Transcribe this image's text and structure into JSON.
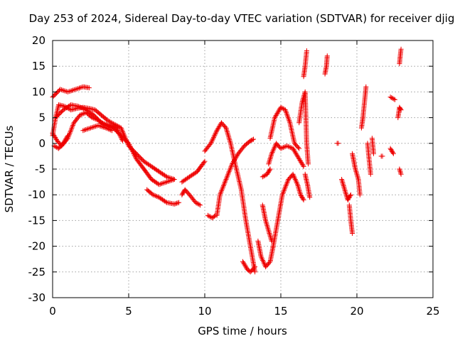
{
  "chart_data": {
    "type": "scatter",
    "title": "Day 253 of 2024, Sidereal Day-to-day VTEC variation (SDTVAR) for receiver djig",
    "xlabel": "GPS time / hours",
    "ylabel": "SDTVAR / TECUs",
    "xlim": [
      0,
      25
    ],
    "ylim": [
      -30,
      20
    ],
    "x_ticks": [
      0,
      5,
      10,
      15,
      20,
      25
    ],
    "x_tick_labels": [
      "0",
      "5",
      "10",
      "15",
      "20",
      "25"
    ],
    "y_ticks": [
      20,
      15,
      10,
      5,
      0,
      -5,
      -10,
      -15,
      -20,
      -25,
      -30
    ],
    "y_tick_labels": [
      "20",
      "15",
      "10",
      "5",
      "0",
      "-5",
      "-10",
      "-15",
      "-20",
      "-25",
      "-30"
    ],
    "grid": true,
    "marker": "+",
    "color": "#ee0000",
    "series": [
      {
        "segments": [
          [
            [
              0,
              1.5
            ],
            [
              0.2,
              5
            ],
            [
              0.4,
              7.5
            ],
            [
              0.8,
              7.2
            ],
            [
              1.2,
              6.5
            ],
            [
              1.6,
              6.8
            ],
            [
              2,
              7
            ],
            [
              2.4,
              6.8
            ],
            [
              2.8,
              6.5
            ],
            [
              3.2,
              5.5
            ],
            [
              3.6,
              4.5
            ],
            [
              4,
              3.8
            ],
            [
              4.5,
              3
            ],
            [
              5,
              -0.5
            ],
            [
              5.5,
              -2
            ],
            [
              6,
              -3.5
            ],
            [
              6.5,
              -4.5
            ],
            [
              7,
              -5.5
            ],
            [
              7.5,
              -6.5
            ],
            [
              8,
              -7
            ]
          ],
          [
            [
              0,
              2
            ],
            [
              0.3,
              0.5
            ],
            [
              0.6,
              -0.5
            ],
            [
              1,
              1
            ],
            [
              1.4,
              4
            ],
            [
              1.8,
              5.5
            ],
            [
              2.2,
              6
            ],
            [
              2.6,
              5
            ],
            [
              3,
              4.5
            ],
            [
              3.5,
              3.5
            ],
            [
              4,
              3
            ],
            [
              4.5,
              1.5
            ],
            [
              5,
              0
            ],
            [
              5.5,
              -3
            ],
            [
              6,
              -5
            ],
            [
              6.5,
              -7
            ],
            [
              7,
              -8
            ],
            [
              7.5,
              -7.5
            ],
            [
              8,
              -7
            ]
          ],
          [
            [
              0,
              9
            ],
            [
              0.5,
              10.5
            ],
            [
              1,
              10
            ],
            [
              1.5,
              10.5
            ],
            [
              2,
              11
            ],
            [
              2.4,
              10.8
            ]
          ],
          [
            [
              0.2,
              5
            ],
            [
              0.7,
              6.5
            ],
            [
              1.2,
              7.5
            ],
            [
              1.7,
              7.2
            ],
            [
              2.2,
              6.5
            ],
            [
              2.7,
              5.5
            ],
            [
              3.2,
              4
            ],
            [
              3.7,
              3.5
            ],
            [
              4.2,
              3
            ],
            [
              4.6,
              0.5
            ]
          ],
          [
            [
              0.1,
              -0.5
            ],
            [
              0.4,
              -1
            ],
            [
              0.7,
              0
            ],
            [
              1,
              1.5
            ]
          ],
          [
            [
              2,
              2.5
            ],
            [
              2.5,
              3
            ],
            [
              3,
              3.5
            ],
            [
              3.5,
              3
            ],
            [
              3.9,
              2.5
            ]
          ],
          [
            [
              6.2,
              -9
            ],
            [
              6.6,
              -10
            ],
            [
              7,
              -10.5
            ],
            [
              7.5,
              -11.5
            ],
            [
              8,
              -11.8
            ],
            [
              8.3,
              -11.5
            ]
          ],
          [
            [
              8.5,
              -10
            ],
            [
              8.7,
              -9
            ],
            [
              9,
              -10
            ],
            [
              9.4,
              -11.5
            ],
            [
              9.7,
              -12
            ]
          ],
          [
            [
              8.5,
              -7.5
            ],
            [
              9,
              -6.5
            ],
            [
              9.5,
              -5.5
            ],
            [
              10,
              -3.5
            ]
          ],
          [
            [
              10.2,
              -14
            ],
            [
              10.5,
              -14.5
            ],
            [
              10.7,
              -14
            ]
          ],
          [
            [
              10,
              -1.5
            ],
            [
              10.4,
              0
            ],
            [
              10.8,
              2.5
            ],
            [
              11.1,
              4
            ],
            [
              11.4,
              3
            ],
            [
              11.7,
              0
            ],
            [
              12,
              -4
            ],
            [
              12.4,
              -9
            ],
            [
              12.7,
              -15
            ],
            [
              13,
              -20
            ],
            [
              13.3,
              -25
            ]
          ],
          [
            [
              10.8,
              -14
            ],
            [
              11,
              -10
            ],
            [
              11.4,
              -7
            ],
            [
              11.8,
              -4
            ],
            [
              12.2,
              -2
            ],
            [
              12.6,
              -0.5
            ],
            [
              13,
              0.5
            ],
            [
              13.2,
              0.8
            ]
          ],
          [
            [
              12.5,
              -23
            ],
            [
              12.8,
              -24.5
            ],
            [
              13,
              -25
            ],
            [
              13.3,
              -24
            ]
          ],
          [
            [
              13.5,
              -19
            ],
            [
              13.7,
              -22
            ],
            [
              14,
              -24
            ],
            [
              14.3,
              -23
            ],
            [
              14.5,
              -20
            ]
          ],
          [
            [
              13.8,
              -12
            ],
            [
              14,
              -15
            ],
            [
              14.2,
              -17
            ],
            [
              14.4,
              -19
            ]
          ],
          [
            [
              13.8,
              -6.5
            ],
            [
              14.1,
              -6
            ],
            [
              14.3,
              -5
            ]
          ],
          [
            [
              14.2,
              -4
            ],
            [
              14.4,
              -2
            ],
            [
              14.7,
              0
            ],
            [
              15,
              -1
            ],
            [
              15.4,
              -0.5
            ],
            [
              15.8,
              -1
            ],
            [
              16.2,
              -3
            ],
            [
              16.5,
              -4.5
            ]
          ],
          [
            [
              14.5,
              -20
            ],
            [
              14.8,
              -15
            ],
            [
              15.1,
              -10
            ],
            [
              15.5,
              -7
            ],
            [
              15.8,
              -6
            ],
            [
              16.1,
              -8
            ],
            [
              16.3,
              -10
            ],
            [
              16.5,
              -11
            ]
          ],
          [
            [
              14.3,
              1
            ],
            [
              14.6,
              5
            ],
            [
              15,
              7
            ],
            [
              15.3,
              6.5
            ],
            [
              15.6,
              4
            ],
            [
              15.9,
              0
            ],
            [
              16.2,
              -1
            ]
          ],
          [
            [
              16.2,
              4
            ],
            [
              16.4,
              8
            ],
            [
              16.6,
              10
            ],
            [
              16.7,
              0
            ],
            [
              16.8,
              -4
            ]
          ],
          [
            [
              16.5,
              13
            ],
            [
              16.6,
              15
            ],
            [
              16.7,
              18
            ]
          ],
          [
            [
              16.6,
              -6
            ],
            [
              16.75,
              -8
            ],
            [
              16.9,
              -10.5
            ]
          ],
          [
            [
              17.9,
              13.5
            ],
            [
              18,
              15
            ],
            [
              18.05,
              17
            ]
          ],
          [
            [
              18.7,
              0
            ]
          ],
          [
            [
              19,
              -7
            ],
            [
              19.2,
              -9
            ],
            [
              19.4,
              -11
            ],
            [
              19.6,
              -10
            ]
          ],
          [
            [
              19.5,
              -12
            ],
            [
              19.6,
              -15
            ],
            [
              19.7,
              -17.5
            ]
          ],
          [
            [
              19.7,
              -2
            ],
            [
              19.9,
              -5
            ],
            [
              20.1,
              -7
            ],
            [
              20.2,
              -10
            ]
          ],
          [
            [
              20.3,
              3
            ],
            [
              20.4,
              5
            ],
            [
              20.5,
              8
            ],
            [
              20.6,
              11
            ]
          ],
          [
            [
              20.7,
              0
            ],
            [
              20.8,
              -3
            ],
            [
              20.9,
              -6
            ]
          ],
          [
            [
              21,
              1
            ],
            [
              21.1,
              -2
            ]
          ],
          [
            [
              21.6,
              -2.5
            ]
          ],
          [
            [
              22.2,
              -1
            ],
            [
              22.4,
              -2
            ]
          ],
          [
            [
              22.2,
              9
            ],
            [
              22.5,
              8.5
            ]
          ],
          [
            [
              22.7,
              5
            ],
            [
              22.8,
              7
            ],
            [
              22.9,
              6.5
            ]
          ],
          [
            [
              22.8,
              15.5
            ],
            [
              22.85,
              17
            ],
            [
              22.9,
              18.3
            ]
          ],
          [
            [
              22.8,
              -5
            ],
            [
              22.9,
              -6
            ]
          ]
        ]
      }
    ]
  }
}
